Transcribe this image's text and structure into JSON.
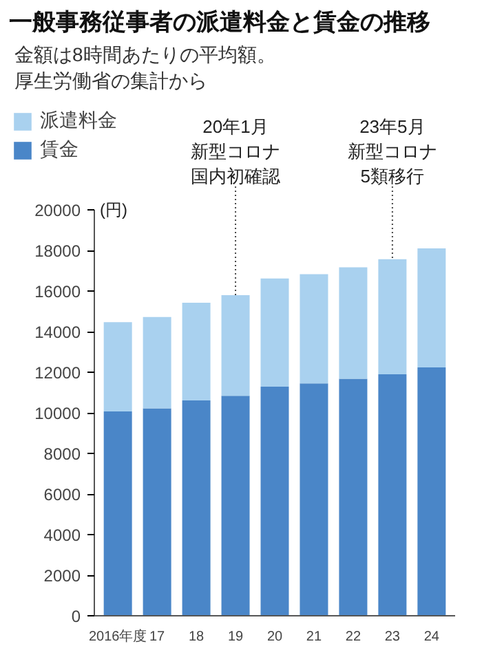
{
  "chart_data": {
    "type": "bar",
    "title": "一般事務従事者の派遣料金と賃金の推移",
    "subtitle": "金額は8時間あたりの平均額。厚生労働省の集計から",
    "ylabel": "(円)",
    "categories": [
      "2016年度",
      "17",
      "18",
      "19",
      "20",
      "21",
      "22",
      "23",
      "24"
    ],
    "stacked": true,
    "series": [
      {
        "name": "賃金",
        "color": "#4a86c8",
        "values": [
          10070,
          10220,
          10610,
          10840,
          11290,
          11450,
          11680,
          11900,
          12240
        ]
      },
      {
        "name": "派遣料金",
        "color": "#a9d1ef",
        "values": [
          4400,
          4500,
          4810,
          4960,
          5330,
          5380,
          5490,
          5670,
          5860
        ]
      }
    ],
    "ylim": [
      0,
      20000
    ],
    "yticks": [
      0,
      2000,
      4000,
      6000,
      8000,
      10000,
      12000,
      14000,
      16000,
      18000,
      20000
    ],
    "grid": false,
    "legend": "top left",
    "annotations": [
      {
        "text": "20年1月新型コロナ国内初確認",
        "x": "19",
        "y": 15800
      },
      {
        "text": "23年5月新型コロナ5類移行",
        "x": "23",
        "y": 17570
      }
    ]
  }
}
